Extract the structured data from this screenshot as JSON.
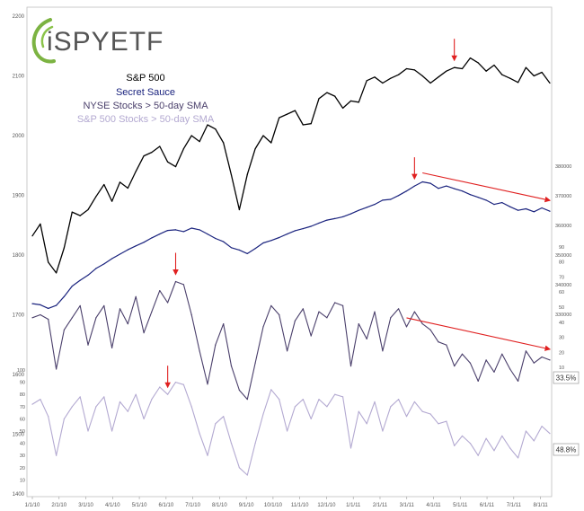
{
  "logo": {
    "text": "iSPYETF"
  },
  "legend": [
    {
      "label": "S&P 500",
      "color": "#000000"
    },
    {
      "label": "Secret Sauce",
      "color": "#1a237e"
    },
    {
      "label": "NYSE Stocks > 50-day SMA",
      "color": "#4a3f6b"
    },
    {
      "label": "S&P 500 Stocks > 50-day SMA",
      "color": "#b3a9d1"
    }
  ],
  "last_values": {
    "nyse": "33.5%",
    "sp": "48.8%"
  },
  "colors": {
    "annotation": "#e02020",
    "grid": "#d9d9d9"
  },
  "chart_data": {
    "type": "line",
    "x_tick_labels": [
      "1/1/10",
      "2/1/10",
      "3/1/10",
      "4/1/10",
      "5/1/10",
      "6/1/10",
      "7/1/10",
      "8/1/10",
      "9/1/10",
      "10/1/10",
      "11/1/10",
      "12/1/10",
      "1/1/11",
      "2/1/11",
      "3/1/11",
      "4/1/11",
      "5/1/11",
      "6/1/11",
      "7/1/11",
      "8/1/11"
    ],
    "left_axis": {
      "ticks": [
        "2200",
        "2100",
        "2000",
        "1900",
        "1800",
        "1700",
        "1600",
        "1500",
        "1400"
      ],
      "range": [
        1400,
        2200
      ]
    },
    "right_axis_secret_sauce": {
      "ticks": [
        "380000",
        "370000",
        "360000",
        "350000",
        "340000",
        "330000"
      ],
      "range": [
        330000,
        380000
      ]
    },
    "right_axis_nyse": {
      "ticks": [
        "90",
        "80",
        "70",
        "60",
        "50",
        "40",
        "30",
        "20",
        "10"
      ]
    },
    "left_axis_sp_stocks": {
      "ticks": [
        "100",
        "90",
        "80",
        "70",
        "60",
        "50",
        "40",
        "30",
        "20",
        "10"
      ]
    },
    "grid": false,
    "legend_position": "top-left",
    "series": [
      {
        "name": "S&P 500",
        "key": "spx",
        "values": [
          1832,
          1852,
          1788,
          1770,
          1812,
          1872,
          1866,
          1876,
          1898,
          1918,
          1890,
          1922,
          1912,
          1940,
          1966,
          1972,
          1982,
          1956,
          1948,
          1978,
          2000,
          1990,
          2018,
          2011,
          1988,
          1934,
          1876,
          1935,
          1978,
          2000,
          1988,
          2030,
          2036,
          2042,
          2018,
          2020,
          2062,
          2072,
          2066,
          2046,
          2058,
          2056,
          2092,
          2098,
          2088,
          2096,
          2102,
          2112,
          2110,
          2100,
          2088,
          2098,
          2108,
          2114,
          2112,
          2130,
          2122,
          2108,
          2118,
          2102,
          2096,
          2089,
          2114,
          2100,
          2106,
          2088
        ]
      },
      {
        "name": "Secret Sauce",
        "key": "sauce",
        "values": [
          333600,
          333200,
          332000,
          333000,
          336000,
          339500,
          341500,
          343200,
          345500,
          347000,
          348800,
          350300,
          351800,
          353100,
          354300,
          355800,
          357100,
          358300,
          358500,
          357900,
          359100,
          358500,
          357100,
          355600,
          354500,
          352500,
          351700,
          350500,
          352200,
          354100,
          354900,
          355900,
          357100,
          358200,
          358900,
          359700,
          360800,
          361800,
          362300,
          362900,
          363900,
          365100,
          366100,
          367100,
          368500,
          368800,
          370100,
          371600,
          373300,
          374700,
          374200,
          372500,
          373300,
          372400,
          371600,
          370400,
          369500,
          368500,
          367100,
          367700,
          366300,
          365100,
          365600,
          364600,
          365900,
          364800
        ]
      },
      {
        "name": "NYSE Stocks > 50-day SMA",
        "key": "nyse",
        "values": [
          62,
          64,
          61,
          28,
          54,
          62,
          70,
          44,
          62,
          70,
          42,
          68,
          58,
          76,
          52,
          66,
          80,
          72,
          86,
          84,
          64,
          40,
          18,
          44,
          58,
          30,
          14,
          8,
          32,
          56,
          70,
          64,
          40,
          60,
          68,
          50,
          66,
          62,
          72,
          70,
          30,
          58,
          48,
          66,
          40,
          62,
          68,
          56,
          66,
          58,
          54,
          46,
          44,
          30,
          38,
          32,
          20,
          34,
          26,
          38,
          28,
          20,
          40,
          32,
          36,
          34
        ]
      },
      {
        "name": "S&P 500 Stocks > 50-day SMA",
        "key": "sp",
        "values": [
          72,
          76,
          62,
          30,
          60,
          70,
          78,
          50,
          70,
          78,
          50,
          74,
          66,
          80,
          60,
          76,
          86,
          80,
          90,
          88,
          70,
          48,
          30,
          56,
          62,
          40,
          20,
          14,
          40,
          64,
          84,
          76,
          50,
          70,
          76,
          60,
          76,
          70,
          80,
          78,
          36,
          66,
          56,
          74,
          50,
          70,
          76,
          62,
          74,
          66,
          64,
          56,
          58,
          38,
          46,
          40,
          30,
          44,
          34,
          46,
          36,
          28,
          50,
          42,
          54,
          48
        ]
      }
    ],
    "annotations": [
      {
        "type": "arrow_down",
        "series": "spx",
        "x_index": 53
      },
      {
        "type": "arrow_down",
        "series": "sauce",
        "x_index": 48
      },
      {
        "type": "arrow_down",
        "series": "nyse",
        "x_index": 18
      },
      {
        "type": "arrow_down",
        "series": "sp",
        "x_index": 17
      },
      {
        "type": "trend_arrow",
        "series": "sauce",
        "from_index": 49,
        "to_index": 65
      },
      {
        "type": "trend_arrow",
        "series": "nyse",
        "from_index": 47,
        "to_index": 65
      }
    ]
  }
}
